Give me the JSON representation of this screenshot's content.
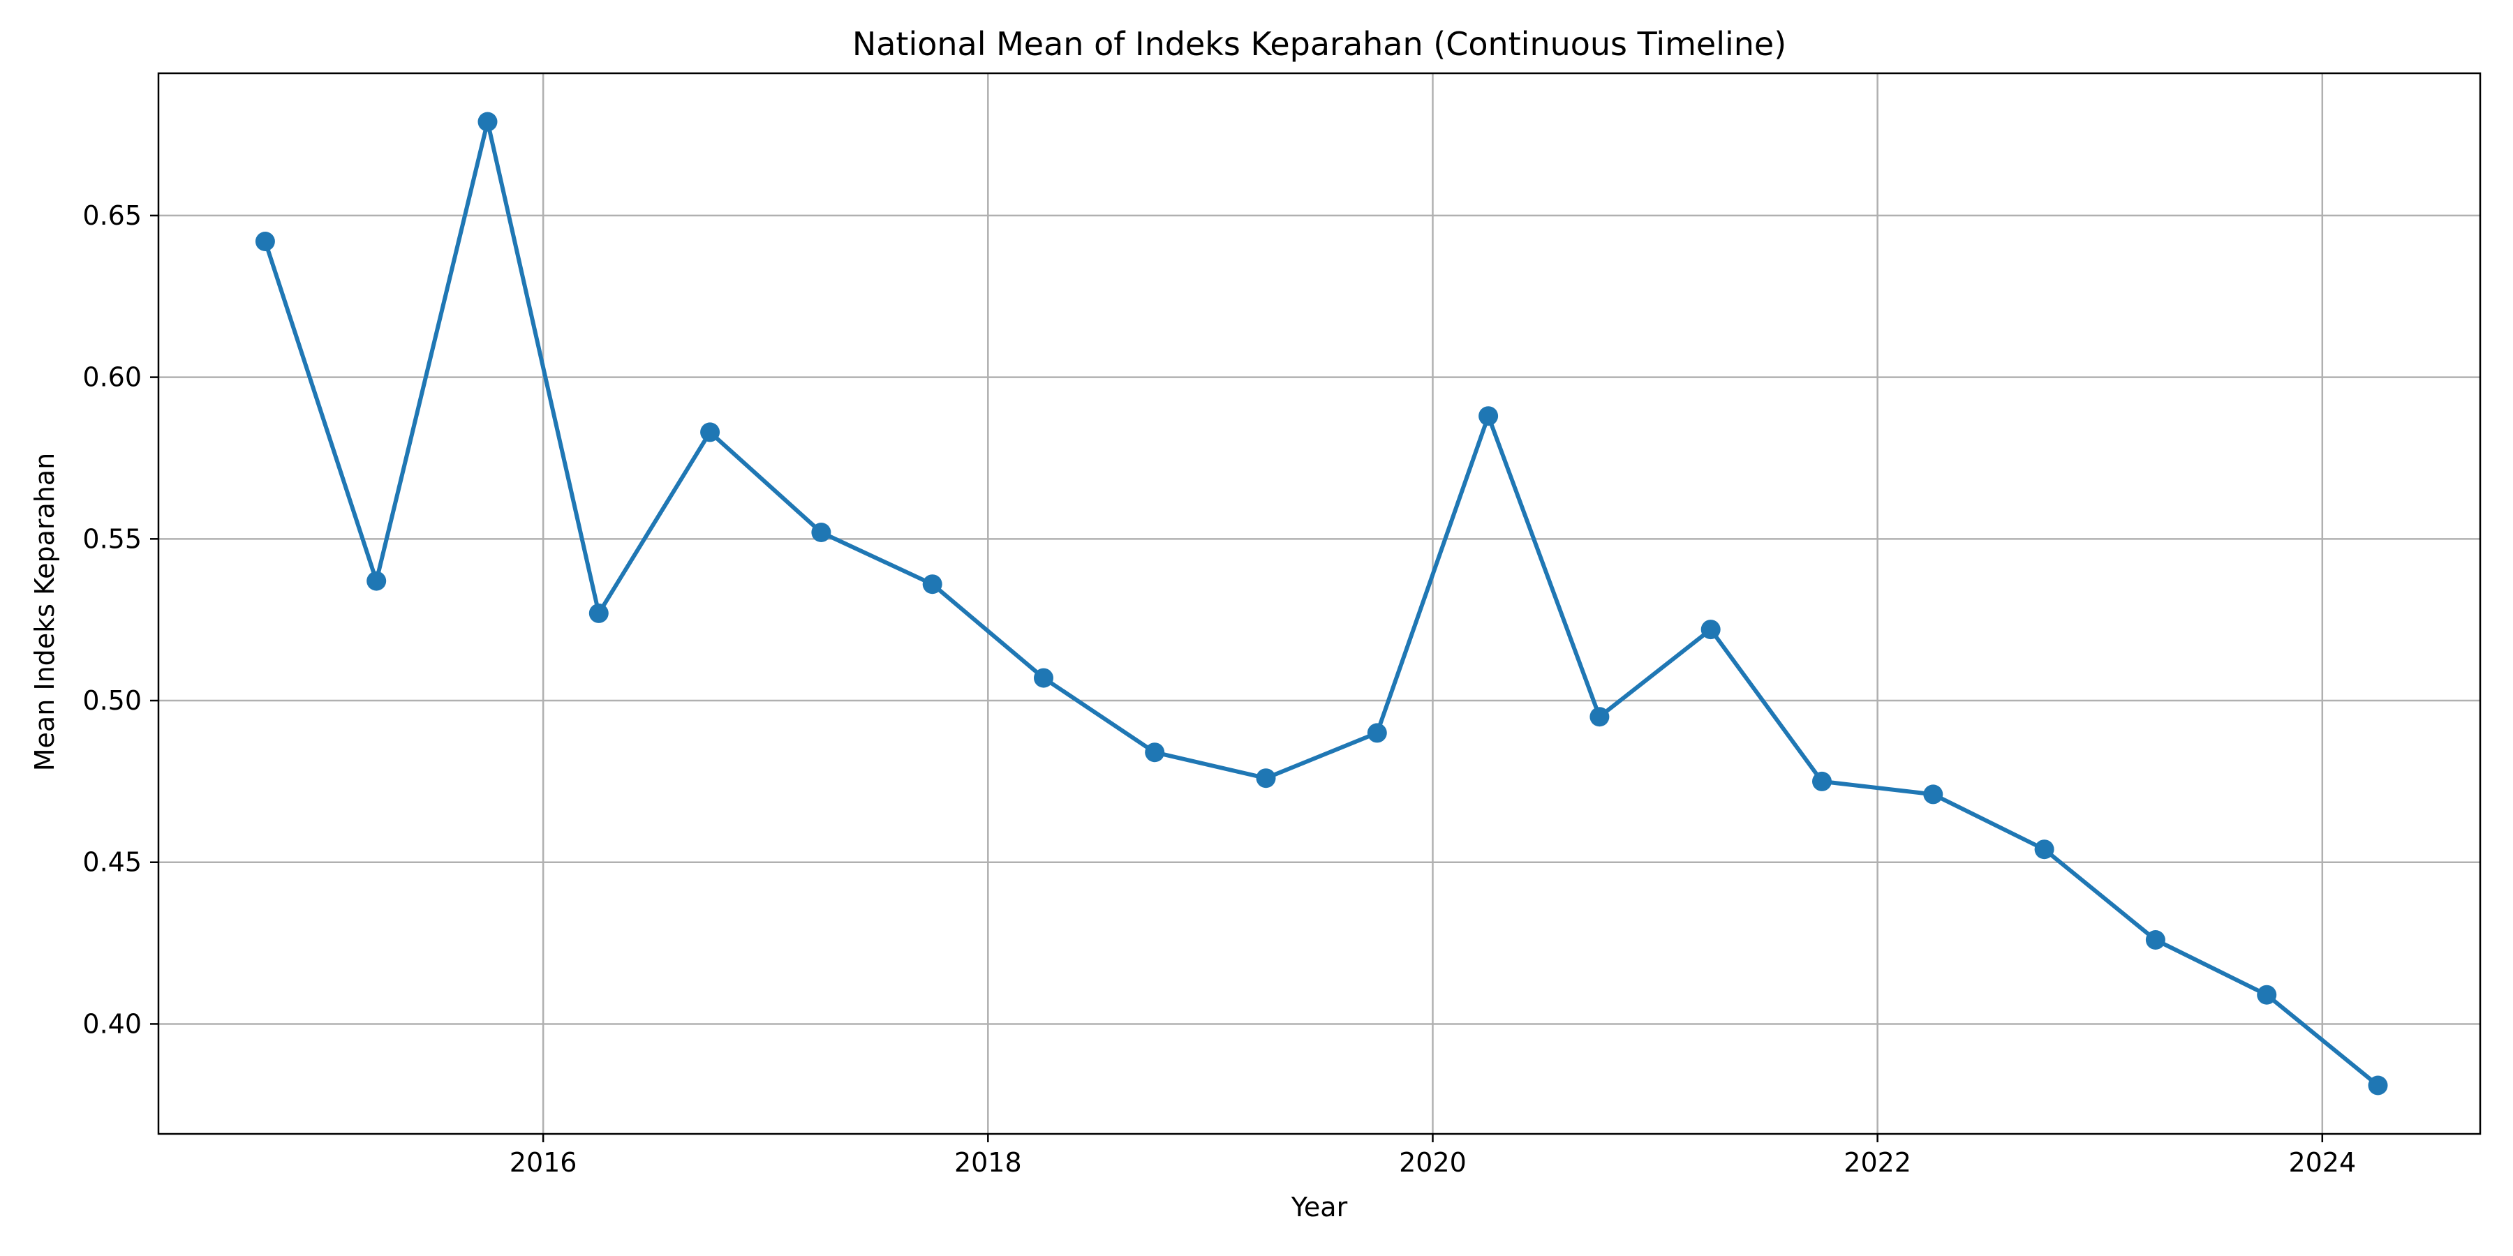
{
  "chart_data": {
    "type": "line",
    "title": "National Mean of Indeks Keparahan (Continuous Timeline)",
    "xlabel": "Year",
    "ylabel": "Mean Indeks Keparahan",
    "xlim": [
      2014.27,
      2024.71
    ],
    "ylim": [
      0.366,
      0.694
    ],
    "xticks": [
      2016,
      2018,
      2020,
      2022,
      2024
    ],
    "xtick_labels": [
      "2016",
      "2018",
      "2020",
      "2022",
      "2024"
    ],
    "yticks": [
      0.4,
      0.45,
      0.5,
      0.55,
      0.6,
      0.65
    ],
    "ytick_labels": [
      "0.40",
      "0.45",
      "0.50",
      "0.55",
      "0.60",
      "0.65"
    ],
    "grid": true,
    "legend": "none",
    "series": [
      {
        "color": "#1f77b4",
        "marker": "circle",
        "x": [
          2014.75,
          2015.25,
          2015.75,
          2016.25,
          2016.75,
          2017.25,
          2017.75,
          2018.25,
          2018.75,
          2019.25,
          2019.75,
          2020.25,
          2020.75,
          2021.25,
          2021.75,
          2022.25,
          2022.75,
          2023.25,
          2023.75,
          2024.25
        ],
        "y": [
          0.642,
          0.537,
          0.679,
          0.527,
          0.583,
          0.552,
          0.536,
          0.507,
          0.484,
          0.476,
          0.49,
          0.588,
          0.495,
          0.522,
          0.475,
          0.471,
          0.454,
          0.426,
          0.409,
          0.381
        ]
      }
    ]
  }
}
